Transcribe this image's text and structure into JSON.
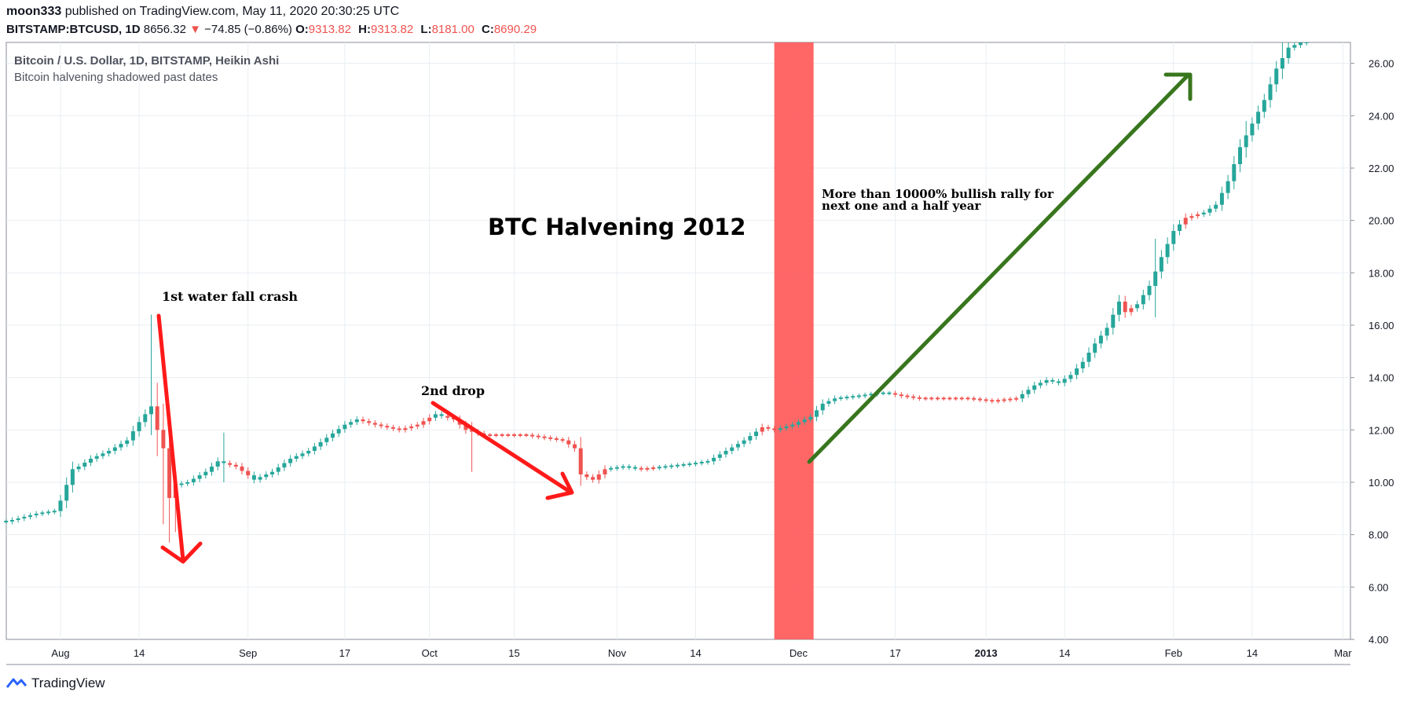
{
  "header": {
    "user": "moon333",
    "published_text": "published on TradingView.com, May 11, 2020 20:30:25 UTC",
    "symbol": "BITSTAMP:BTCUSD, 1D",
    "price": "8656.32",
    "arrow": "▼",
    "change": "−74.85 (−0.86%)",
    "o_label": "O:",
    "o_value": "9313.82",
    "h_label": "H:",
    "h_value": "9313.82",
    "l_label": "L:",
    "l_value": "8181.00",
    "c_label": "C:",
    "c_value": "8690.29"
  },
  "footer": {
    "brand": "TradingView"
  },
  "colors": {
    "up": "#26a69a",
    "down": "#ef5350",
    "grid": "#e9eef2",
    "band": "#ff5252",
    "green_arrow": "#38761d",
    "red_arrow": "#ff1a1a"
  },
  "chart_data": {
    "type": "candlestick",
    "title": "Bitcoin / U.S. Dollar, 1D, BITSTAMP, Heikin Ashi",
    "subtitle": "Bitcoin halvening shadowed past dates",
    "ylim": [
      4,
      26.8
    ],
    "y_ticks": [
      "4.00",
      "6.00",
      "8.00",
      "10.00",
      "12.00",
      "14.00",
      "16.00",
      "18.00",
      "20.00",
      "22.00",
      "24.00",
      "26.00"
    ],
    "x_ticks": [
      {
        "label": "Aug",
        "day": 0,
        "bold": false
      },
      {
        "label": "14",
        "day": 13,
        "bold": false
      },
      {
        "label": "Sep",
        "day": 31,
        "bold": false
      },
      {
        "label": "17",
        "day": 47,
        "bold": false
      },
      {
        "label": "Oct",
        "day": 61,
        "bold": false
      },
      {
        "label": "15",
        "day": 75,
        "bold": false
      },
      {
        "label": "Nov",
        "day": 92,
        "bold": false
      },
      {
        "label": "14",
        "day": 105,
        "bold": false
      },
      {
        "label": "Dec",
        "day": 122,
        "bold": false
      },
      {
        "label": "17",
        "day": 138,
        "bold": false
      },
      {
        "label": "2013",
        "day": 153,
        "bold": true
      },
      {
        "label": "14",
        "day": 166,
        "bold": false
      },
      {
        "label": "Feb",
        "day": 184,
        "bold": false
      },
      {
        "label": "14",
        "day": 197,
        "bold": false
      },
      {
        "label": "Mar",
        "day": 212,
        "bold": false
      }
    ],
    "start_day": -9,
    "halvening_band_days": [
      118,
      124.5
    ],
    "close_points": [
      [
        -9,
        8.5
      ],
      [
        -4,
        8.8
      ],
      [
        -1,
        8.9
      ],
      [
        0,
        9.3
      ],
      [
        2,
        10.5
      ],
      [
        3,
        10.6
      ],
      [
        5,
        10.9
      ],
      [
        8,
        11.2
      ],
      [
        11,
        11.6
      ],
      [
        13,
        12.3
      ],
      [
        15,
        12.9
      ],
      [
        16,
        12.0
      ],
      [
        17,
        11.3
      ],
      [
        18,
        9.4
      ],
      [
        19,
        9.9
      ],
      [
        21,
        10.0
      ],
      [
        24,
        10.4
      ],
      [
        26,
        10.8
      ],
      [
        29,
        10.6
      ],
      [
        32,
        10.1
      ],
      [
        35,
        10.4
      ],
      [
        38,
        10.9
      ],
      [
        41,
        11.2
      ],
      [
        44,
        11.7
      ],
      [
        47,
        12.2
      ],
      [
        49,
        12.4
      ],
      [
        52,
        12.2
      ],
      [
        56,
        12.0
      ],
      [
        59,
        12.2
      ],
      [
        62,
        12.6
      ],
      [
        65,
        12.4
      ],
      [
        67,
        12.0
      ],
      [
        70,
        11.8
      ],
      [
        73,
        11.8
      ],
      [
        77,
        11.8
      ],
      [
        80,
        11.7
      ],
      [
        83,
        11.6
      ],
      [
        85,
        11.3
      ],
      [
        86,
        10.3
      ],
      [
        88,
        10.1
      ],
      [
        90,
        10.5
      ],
      [
        93,
        10.6
      ],
      [
        96,
        10.5
      ],
      [
        100,
        10.6
      ],
      [
        104,
        10.7
      ],
      [
        107,
        10.8
      ],
      [
        110,
        11.2
      ],
      [
        113,
        11.6
      ],
      [
        116,
        12.1
      ],
      [
        118,
        12.0
      ],
      [
        121,
        12.2
      ],
      [
        124,
        12.5
      ],
      [
        126,
        13.0
      ],
      [
        128,
        13.2
      ],
      [
        132,
        13.3
      ],
      [
        135,
        13.4
      ],
      [
        137,
        13.4
      ],
      [
        139,
        13.3
      ],
      [
        142,
        13.2
      ],
      [
        146,
        13.2
      ],
      [
        150,
        13.2
      ],
      [
        154,
        13.1
      ],
      [
        158,
        13.2
      ],
      [
        161,
        13.7
      ],
      [
        163,
        13.9
      ],
      [
        165,
        13.8
      ],
      [
        167,
        14.1
      ],
      [
        169,
        14.6
      ],
      [
        171,
        15.3
      ],
      [
        173,
        15.9
      ],
      [
        175,
        16.9
      ],
      [
        176,
        16.5
      ],
      [
        178,
        16.8
      ],
      [
        180,
        17.5
      ],
      [
        182,
        18.6
      ],
      [
        184,
        19.6
      ],
      [
        186,
        20.1
      ],
      [
        189,
        20.3
      ],
      [
        191,
        20.6
      ],
      [
        193,
        21.5
      ],
      [
        195,
        22.8
      ],
      [
        197,
        23.7
      ],
      [
        199,
        24.6
      ],
      [
        201,
        25.8
      ],
      [
        203,
        26.6
      ],
      [
        206,
        26.9
      ]
    ],
    "down_ranges": [
      [
        16,
        19
      ],
      [
        28,
        31
      ],
      [
        50,
        61
      ],
      [
        64,
        90
      ],
      [
        96,
        98
      ],
      [
        116,
        118
      ],
      [
        138,
        158
      ],
      [
        176,
        177
      ],
      [
        186,
        188
      ]
    ],
    "spikes": [
      {
        "day": 15,
        "high": 16.4,
        "low": 11.8
      },
      {
        "day": 16,
        "high": 13.8,
        "low": 11.0
      },
      {
        "day": 17,
        "high": 13.0,
        "low": 8.4
      },
      {
        "day": 18,
        "high": 11.8,
        "low": 7.7
      },
      {
        "day": 19,
        "high": 10.4,
        "low": 8.1
      },
      {
        "day": 27,
        "high": 11.9,
        "low": 10.0
      },
      {
        "day": 68,
        "high": 12.3,
        "low": 10.4
      },
      {
        "day": 181,
        "high": 19.3,
        "low": 16.3
      },
      {
        "day": 196,
        "high": 23.8,
        "low": 22.4
      },
      {
        "day": 202,
        "high": 26.8,
        "low": 25.4
      }
    ],
    "annotations": [
      {
        "name": "crash-label",
        "text": "1st water fall crash"
      },
      {
        "name": "drop-label",
        "text": "2nd drop"
      },
      {
        "name": "halvening-label",
        "text": "BTC Halvening 2012"
      },
      {
        "name": "rally-line-1",
        "text": "More than 10000% bullish rally for"
      },
      {
        "name": "rally-line-2",
        "text": "next one and a half year"
      }
    ]
  }
}
